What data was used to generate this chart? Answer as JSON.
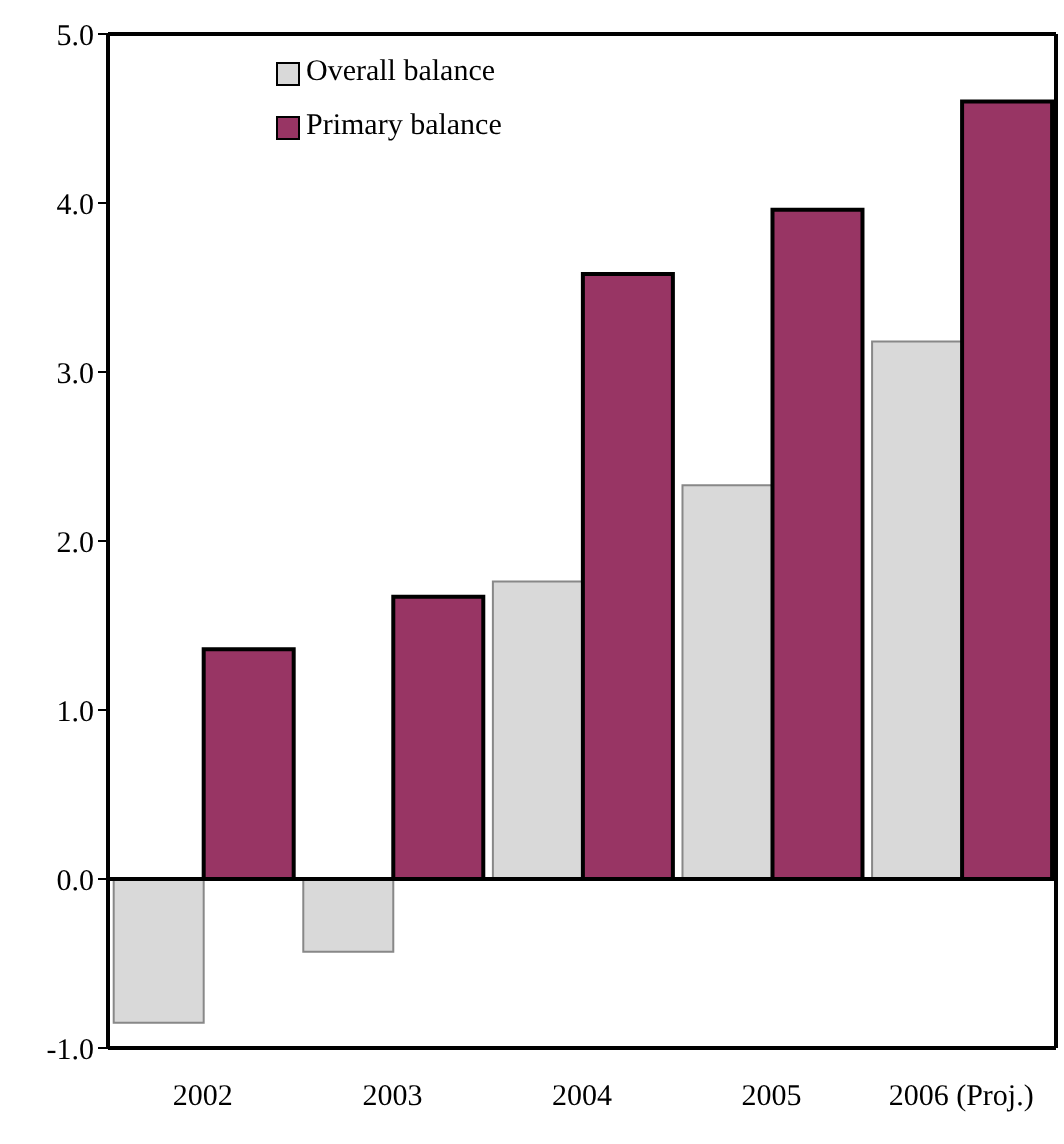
{
  "chart_data": {
    "type": "bar",
    "categories": [
      "2002",
      "2003",
      "2004",
      "2005",
      "2006 (Proj.)"
    ],
    "series": [
      {
        "name": "Overall balance",
        "color": "#d9d9d9",
        "values": [
          -0.85,
          -0.43,
          1.76,
          2.33,
          3.18
        ]
      },
      {
        "name": "Primary balance",
        "color": "#983564",
        "values": [
          1.36,
          1.67,
          3.58,
          3.96,
          4.6
        ]
      }
    ],
    "ylim": [
      -1,
      5
    ],
    "yticks": [
      {
        "value": -1,
        "label": "-1.0"
      },
      {
        "value": 0,
        "label": "0.0"
      },
      {
        "value": 1,
        "label": "1.0"
      },
      {
        "value": 2,
        "label": "2.0"
      },
      {
        "value": 3,
        "label": "3.0"
      },
      {
        "value": 4,
        "label": "4.0"
      },
      {
        "value": 5,
        "label": "5.0"
      }
    ],
    "ref_lines": [
      {
        "axis": "y",
        "value": 0,
        "color": "#000000"
      }
    ],
    "grid": false,
    "legend": "top left"
  }
}
